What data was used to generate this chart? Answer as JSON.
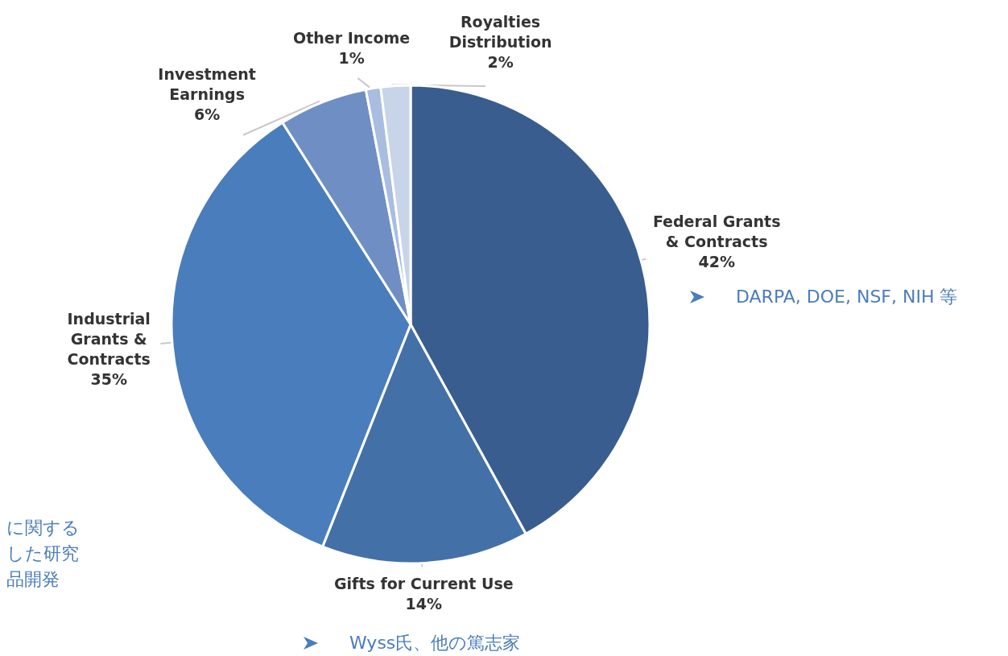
{
  "chart_data": {
    "type": "pie",
    "categories": [
      "Federal Grants & Contracts",
      "Gifts for Current Use",
      "Industrial Grants & Contracts",
      "Investment Earnings",
      "Other Income",
      "Royalties Distribution"
    ],
    "values": [
      42,
      14,
      35,
      6,
      1,
      2
    ],
    "value_labels": [
      "42%",
      "14%",
      "35%",
      "6%",
      "1%",
      "2%"
    ],
    "colors": [
      "#3a5d8f",
      "#4470a8",
      "#4a7dbb",
      "#6f8fc4",
      "#a8bde0",
      "#c8d4e8"
    ],
    "annotations": [
      "DARPA, DOE, NSF, NIH 等",
      "Wyss氏、他の篤志家",
      "に関する",
      "した研究",
      "品開発"
    ]
  }
}
